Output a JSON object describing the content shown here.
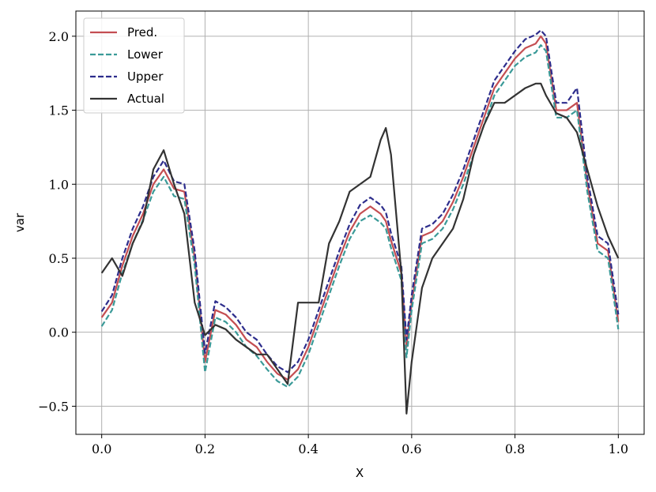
{
  "chart_data": {
    "type": "line",
    "x_label": "X",
    "y_label": "var",
    "x": [
      0,
      0.02,
      0.04,
      0.06,
      0.08,
      0.1,
      0.12,
      0.14,
      0.16,
      0.18,
      0.2,
      0.22,
      0.24,
      0.26,
      0.28,
      0.3,
      0.32,
      0.34,
      0.36,
      0.38,
      0.4,
      0.42,
      0.44,
      0.46,
      0.48,
      0.5,
      0.52,
      0.54,
      0.55,
      0.56,
      0.58,
      0.59,
      0.6,
      0.62,
      0.64,
      0.66,
      0.68,
      0.7,
      0.72,
      0.74,
      0.76,
      0.78,
      0.8,
      0.82,
      0.84,
      0.85,
      0.86,
      0.88,
      0.9,
      0.92,
      0.94,
      0.96,
      0.98,
      1.0
    ],
    "series": [
      {
        "name": "Pred.",
        "color": "#c44e52",
        "style": "solid",
        "values": [
          0.1,
          0.2,
          0.45,
          0.65,
          0.8,
          1.0,
          1.1,
          0.97,
          0.95,
          0.5,
          -0.2,
          0.15,
          0.12,
          0.05,
          -0.05,
          -0.1,
          -0.2,
          -0.28,
          -0.32,
          -0.25,
          -0.1,
          0.1,
          0.3,
          0.5,
          0.68,
          0.8,
          0.85,
          0.8,
          0.75,
          0.62,
          0.4,
          -0.1,
          0.2,
          0.65,
          0.68,
          0.75,
          0.88,
          1.05,
          1.25,
          1.45,
          1.65,
          1.75,
          1.85,
          1.92,
          1.95,
          2.0,
          1.95,
          1.5,
          1.5,
          1.55,
          1.0,
          0.6,
          0.55,
          0.07
        ]
      },
      {
        "name": "Lower",
        "color": "#3a9a98",
        "style": "dashed",
        "values": [
          0.04,
          0.15,
          0.4,
          0.6,
          0.76,
          0.95,
          1.05,
          0.92,
          0.9,
          0.45,
          -0.27,
          0.1,
          0.07,
          0.0,
          -0.1,
          -0.16,
          -0.25,
          -0.33,
          -0.37,
          -0.3,
          -0.15,
          0.05,
          0.25,
          0.45,
          0.63,
          0.75,
          0.79,
          0.74,
          0.7,
          0.57,
          0.35,
          -0.17,
          0.15,
          0.6,
          0.63,
          0.7,
          0.83,
          1.0,
          1.2,
          1.4,
          1.6,
          1.7,
          1.8,
          1.86,
          1.89,
          1.94,
          1.9,
          1.45,
          1.45,
          1.5,
          0.95,
          0.55,
          0.5,
          0.02
        ]
      },
      {
        "name": "Upper",
        "color": "#2d2d8c",
        "style": "dashed",
        "values": [
          0.14,
          0.25,
          0.5,
          0.7,
          0.85,
          1.05,
          1.16,
          1.02,
          1.0,
          0.55,
          -0.14,
          0.21,
          0.17,
          0.1,
          0.0,
          -0.05,
          -0.15,
          -0.23,
          -0.27,
          -0.2,
          -0.05,
          0.15,
          0.35,
          0.55,
          0.73,
          0.86,
          0.91,
          0.86,
          0.81,
          0.67,
          0.45,
          -0.05,
          0.25,
          0.7,
          0.73,
          0.8,
          0.93,
          1.1,
          1.3,
          1.5,
          1.7,
          1.8,
          1.9,
          1.98,
          2.01,
          2.04,
          2.0,
          1.55,
          1.55,
          1.65,
          1.05,
          0.65,
          0.6,
          0.12
        ]
      },
      {
        "name": "Actual",
        "color": "#333333",
        "style": "solid",
        "values": [
          0.4,
          0.5,
          0.38,
          0.6,
          0.75,
          1.1,
          1.23,
          1.0,
          0.8,
          0.2,
          -0.02,
          0.05,
          0.02,
          -0.05,
          -0.1,
          -0.15,
          -0.15,
          -0.25,
          -0.35,
          0.2,
          0.2,
          0.2,
          0.6,
          0.75,
          0.95,
          1.0,
          1.05,
          1.3,
          1.38,
          1.2,
          0.4,
          -0.55,
          -0.2,
          0.3,
          0.5,
          0.6,
          0.7,
          0.9,
          1.2,
          1.4,
          1.55,
          1.55,
          1.6,
          1.65,
          1.68,
          1.68,
          1.6,
          1.48,
          1.45,
          1.35,
          1.1,
          0.85,
          0.65,
          0.5
        ]
      }
    ],
    "xlim": [
      -0.05,
      1.05
    ],
    "ylim": [
      -0.69,
      2.17
    ],
    "xticks": [
      {
        "value": 0,
        "label": "0.0"
      },
      0.2,
      0.4,
      0.6,
      0.8,
      {
        "value": 1,
        "label": "1.0"
      }
    ],
    "yticks": [
      {
        "value": -0.5,
        "label": "−0.5"
      },
      {
        "value": 0,
        "label": "0.0"
      },
      0.5,
      {
        "value": 1,
        "label": "1.0"
      },
      1.5,
      {
        "value": 2,
        "label": "2.0"
      }
    ],
    "grid": true,
    "legend": "upper-left"
  }
}
